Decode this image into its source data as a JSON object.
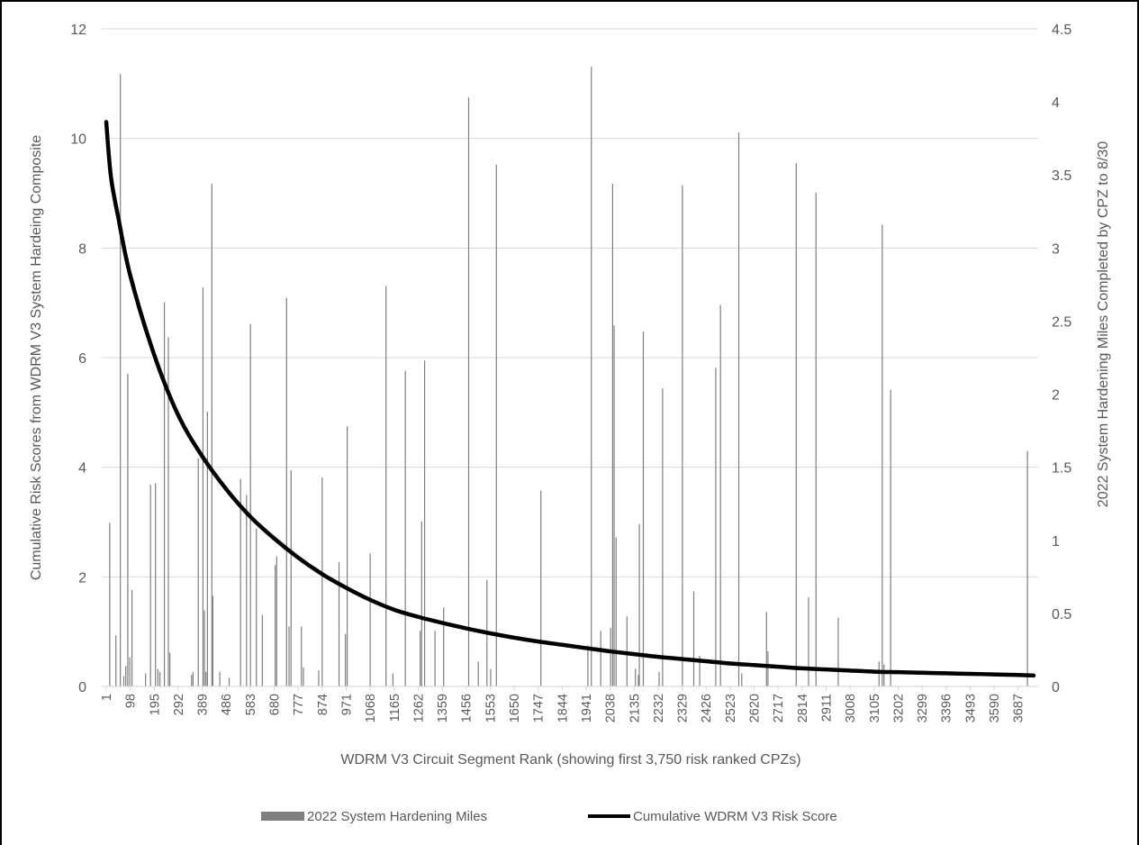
{
  "chart_data": {
    "type": "bar",
    "xlabel": "WDRM V3 Circuit Segment Rank (showing first 3,750 risk ranked CPZs)",
    "ylabel_left": "Cumulative Risk Scores from WDRM V3 System Hardeing Composite",
    "ylabel_right": "2022 System Hardening Miles Completed by CPZ to 8/30",
    "ylim_left": [
      0,
      12
    ],
    "ylim_right": [
      0,
      4.5
    ],
    "yticks_left": [
      "0",
      "2",
      "4",
      "6",
      "8",
      "10",
      "12"
    ],
    "yticks_right": [
      "0",
      "0.5",
      "1",
      "1.5",
      "2",
      "2.5",
      "3",
      "3.5",
      "4",
      "4.5"
    ],
    "xlim": [
      1,
      3750
    ],
    "xticks": [
      "1",
      "98",
      "195",
      "292",
      "389",
      "486",
      "583",
      "680",
      "777",
      "874",
      "971",
      "1068",
      "1165",
      "1262",
      "1359",
      "1456",
      "1553",
      "1650",
      "1747",
      "1844",
      "1941",
      "2038",
      "2135",
      "2232",
      "2329",
      "2426",
      "2523",
      "2620",
      "2717",
      "2814",
      "2911",
      "3008",
      "3105",
      "3202",
      "3299",
      "3396",
      "3493",
      "3590",
      "3687"
    ],
    "grid": "horizontal",
    "legend_position": "bottom",
    "series": [
      {
        "name": "2022 System Hardening Miles",
        "axis": "right",
        "color": "#7f7f7f",
        "points": [
          {
            "x": 15,
            "y": 1.12
          },
          {
            "x": 40,
            "y": 0.35
          },
          {
            "x": 58,
            "y": 4.19
          },
          {
            "x": 72,
            "y": 0.07
          },
          {
            "x": 80,
            "y": 0.14
          },
          {
            "x": 88,
            "y": 2.14
          },
          {
            "x": 96,
            "y": 0.2
          },
          {
            "x": 105,
            "y": 0.66
          },
          {
            "x": 160,
            "y": 0.09
          },
          {
            "x": 180,
            "y": 1.38
          },
          {
            "x": 200,
            "y": 1.39
          },
          {
            "x": 210,
            "y": 0.12
          },
          {
            "x": 218,
            "y": 0.1
          },
          {
            "x": 236,
            "y": 2.63
          },
          {
            "x": 252,
            "y": 2.39
          },
          {
            "x": 258,
            "y": 0.23
          },
          {
            "x": 346,
            "y": 0.08
          },
          {
            "x": 352,
            "y": 0.1
          },
          {
            "x": 373,
            "y": 1.56
          },
          {
            "x": 392,
            "y": 2.73
          },
          {
            "x": 398,
            "y": 0.52
          },
          {
            "x": 404,
            "y": 0.1
          },
          {
            "x": 410,
            "y": 1.88
          },
          {
            "x": 428,
            "y": 3.44
          },
          {
            "x": 432,
            "y": 0.62
          },
          {
            "x": 460,
            "y": 0.1
          },
          {
            "x": 498,
            "y": 0.06
          },
          {
            "x": 544,
            "y": 1.42
          },
          {
            "x": 568,
            "y": 1.31
          },
          {
            "x": 584,
            "y": 2.48
          },
          {
            "x": 608,
            "y": 1.08
          },
          {
            "x": 632,
            "y": 0.49
          },
          {
            "x": 684,
            "y": 0.83
          },
          {
            "x": 690,
            "y": 0.89
          },
          {
            "x": 730,
            "y": 2.66
          },
          {
            "x": 740,
            "y": 0.41
          },
          {
            "x": 748,
            "y": 1.48
          },
          {
            "x": 790,
            "y": 0.41
          },
          {
            "x": 798,
            "y": 0.13
          },
          {
            "x": 860,
            "y": 0.11
          },
          {
            "x": 874,
            "y": 1.43
          },
          {
            "x": 942,
            "y": 0.85
          },
          {
            "x": 968,
            "y": 0.36
          },
          {
            "x": 975,
            "y": 1.78
          },
          {
            "x": 1068,
            "y": 0.91
          },
          {
            "x": 1132,
            "y": 2.74
          },
          {
            "x": 1160,
            "y": 0.09
          },
          {
            "x": 1210,
            "y": 2.16
          },
          {
            "x": 1270,
            "y": 0.38
          },
          {
            "x": 1276,
            "y": 1.13
          },
          {
            "x": 1288,
            "y": 2.23
          },
          {
            "x": 1330,
            "y": 0.38
          },
          {
            "x": 1365,
            "y": 0.54
          },
          {
            "x": 1466,
            "y": 4.03
          },
          {
            "x": 1505,
            "y": 0.17
          },
          {
            "x": 1540,
            "y": 0.73
          },
          {
            "x": 1555,
            "y": 0.12
          },
          {
            "x": 1578,
            "y": 3.57
          },
          {
            "x": 1758,
            "y": 1.34
          },
          {
            "x": 1948,
            "y": 0.28
          },
          {
            "x": 1962,
            "y": 4.24
          },
          {
            "x": 2000,
            "y": 0.38
          },
          {
            "x": 2040,
            "y": 0.4
          },
          {
            "x": 2048,
            "y": 3.44
          },
          {
            "x": 2054,
            "y": 2.47
          },
          {
            "x": 2062,
            "y": 1.02
          },
          {
            "x": 2106,
            "y": 0.48
          },
          {
            "x": 2140,
            "y": 0.12
          },
          {
            "x": 2152,
            "y": 0.08
          },
          {
            "x": 2156,
            "y": 1.11
          },
          {
            "x": 2172,
            "y": 2.43
          },
          {
            "x": 2236,
            "y": 0.1
          },
          {
            "x": 2250,
            "y": 2.04
          },
          {
            "x": 2330,
            "y": 3.43
          },
          {
            "x": 2376,
            "y": 0.65
          },
          {
            "x": 2400,
            "y": 0.21
          },
          {
            "x": 2465,
            "y": 2.18
          },
          {
            "x": 2484,
            "y": 2.61
          },
          {
            "x": 2558,
            "y": 3.79
          },
          {
            "x": 2570,
            "y": 0.09
          },
          {
            "x": 2670,
            "y": 0.51
          },
          {
            "x": 2676,
            "y": 0.24
          },
          {
            "x": 2790,
            "y": 3.58
          },
          {
            "x": 2840,
            "y": 0.61
          },
          {
            "x": 2870,
            "y": 3.38
          },
          {
            "x": 2960,
            "y": 0.47
          },
          {
            "x": 3125,
            "y": 0.17
          },
          {
            "x": 3138,
            "y": 3.16
          },
          {
            "x": 3145,
            "y": 0.15
          },
          {
            "x": 3172,
            "y": 2.03
          },
          {
            "x": 3725,
            "y": 1.61
          }
        ]
      },
      {
        "name": "Cumulative WDRM V3 Risk Score",
        "axis": "left",
        "color": "#000000",
        "points": [
          {
            "x": 1,
            "y": 10.3
          },
          {
            "x": 20,
            "y": 9.3
          },
          {
            "x": 50,
            "y": 8.55
          },
          {
            "x": 98,
            "y": 7.5
          },
          {
            "x": 195,
            "y": 6.05
          },
          {
            "x": 292,
            "y": 4.95
          },
          {
            "x": 389,
            "y": 4.2
          },
          {
            "x": 486,
            "y": 3.6
          },
          {
            "x": 583,
            "y": 3.1
          },
          {
            "x": 680,
            "y": 2.7
          },
          {
            "x": 777,
            "y": 2.35
          },
          {
            "x": 874,
            "y": 2.05
          },
          {
            "x": 971,
            "y": 1.8
          },
          {
            "x": 1068,
            "y": 1.58
          },
          {
            "x": 1165,
            "y": 1.4
          },
          {
            "x": 1262,
            "y": 1.27
          },
          {
            "x": 1359,
            "y": 1.16
          },
          {
            "x": 1456,
            "y": 1.06
          },
          {
            "x": 1553,
            "y": 0.97
          },
          {
            "x": 1650,
            "y": 0.89
          },
          {
            "x": 1747,
            "y": 0.82
          },
          {
            "x": 1844,
            "y": 0.76
          },
          {
            "x": 1941,
            "y": 0.7
          },
          {
            "x": 2038,
            "y": 0.64
          },
          {
            "x": 2135,
            "y": 0.59
          },
          {
            "x": 2232,
            "y": 0.54
          },
          {
            "x": 2329,
            "y": 0.5
          },
          {
            "x": 2426,
            "y": 0.46
          },
          {
            "x": 2523,
            "y": 0.42
          },
          {
            "x": 2620,
            "y": 0.39
          },
          {
            "x": 2717,
            "y": 0.36
          },
          {
            "x": 2814,
            "y": 0.33
          },
          {
            "x": 2911,
            "y": 0.31
          },
          {
            "x": 3008,
            "y": 0.29
          },
          {
            "x": 3105,
            "y": 0.27
          },
          {
            "x": 3202,
            "y": 0.26
          },
          {
            "x": 3299,
            "y": 0.25
          },
          {
            "x": 3396,
            "y": 0.24
          },
          {
            "x": 3493,
            "y": 0.23
          },
          {
            "x": 3590,
            "y": 0.22
          },
          {
            "x": 3687,
            "y": 0.21
          },
          {
            "x": 3750,
            "y": 0.2
          }
        ]
      }
    ]
  }
}
